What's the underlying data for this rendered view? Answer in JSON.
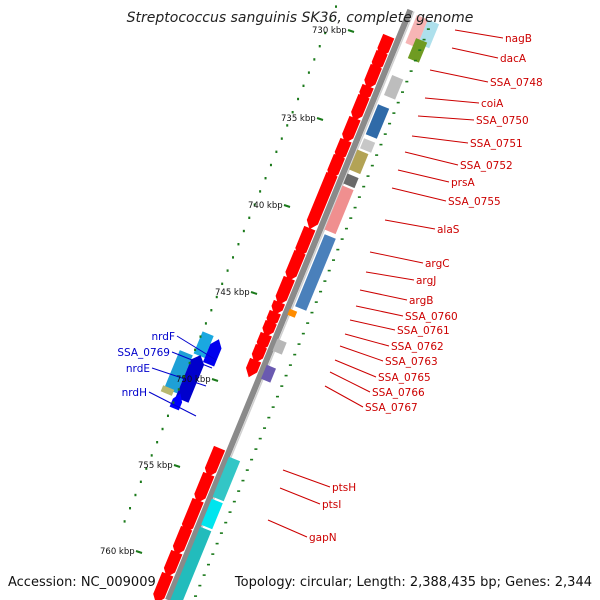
{
  "title": "Streptococcus sanguinis SK36, complete genome",
  "footer": {
    "accession": "Accession: NC_009009",
    "summary": "Topology: circular; Length: 2,388,435 bp; Genes: 2,344"
  },
  "scale_labels": [
    "730 kbp",
    "735 kbp",
    "740 kbp",
    "745 kbp",
    "750 kbp",
    "755 kbp",
    "760 kbp"
  ],
  "colors": {
    "backbone": "#8a8a8a",
    "cds_arrow": "#ff0000",
    "tick": "#1b7a1b",
    "forward_label": "#cc0000",
    "reverse_label": "#0000cc"
  },
  "labels_right": [
    "nagB",
    "dacA",
    "SSA_0748",
    "coiA",
    "SSA_0750",
    "SSA_0751",
    "SSA_0752",
    "prsA",
    "SSA_0755",
    "alaS",
    "argC",
    "argJ",
    "argB",
    "SSA_0760",
    "SSA_0761",
    "SSA_0762",
    "SSA_0763",
    "SSA_0765",
    "SSA_0766",
    "SSA_0767",
    "ptsH",
    "ptsI",
    "gapN"
  ],
  "labels_left": [
    "nrdF",
    "SSA_0769",
    "nrdE",
    "nrdH"
  ]
}
